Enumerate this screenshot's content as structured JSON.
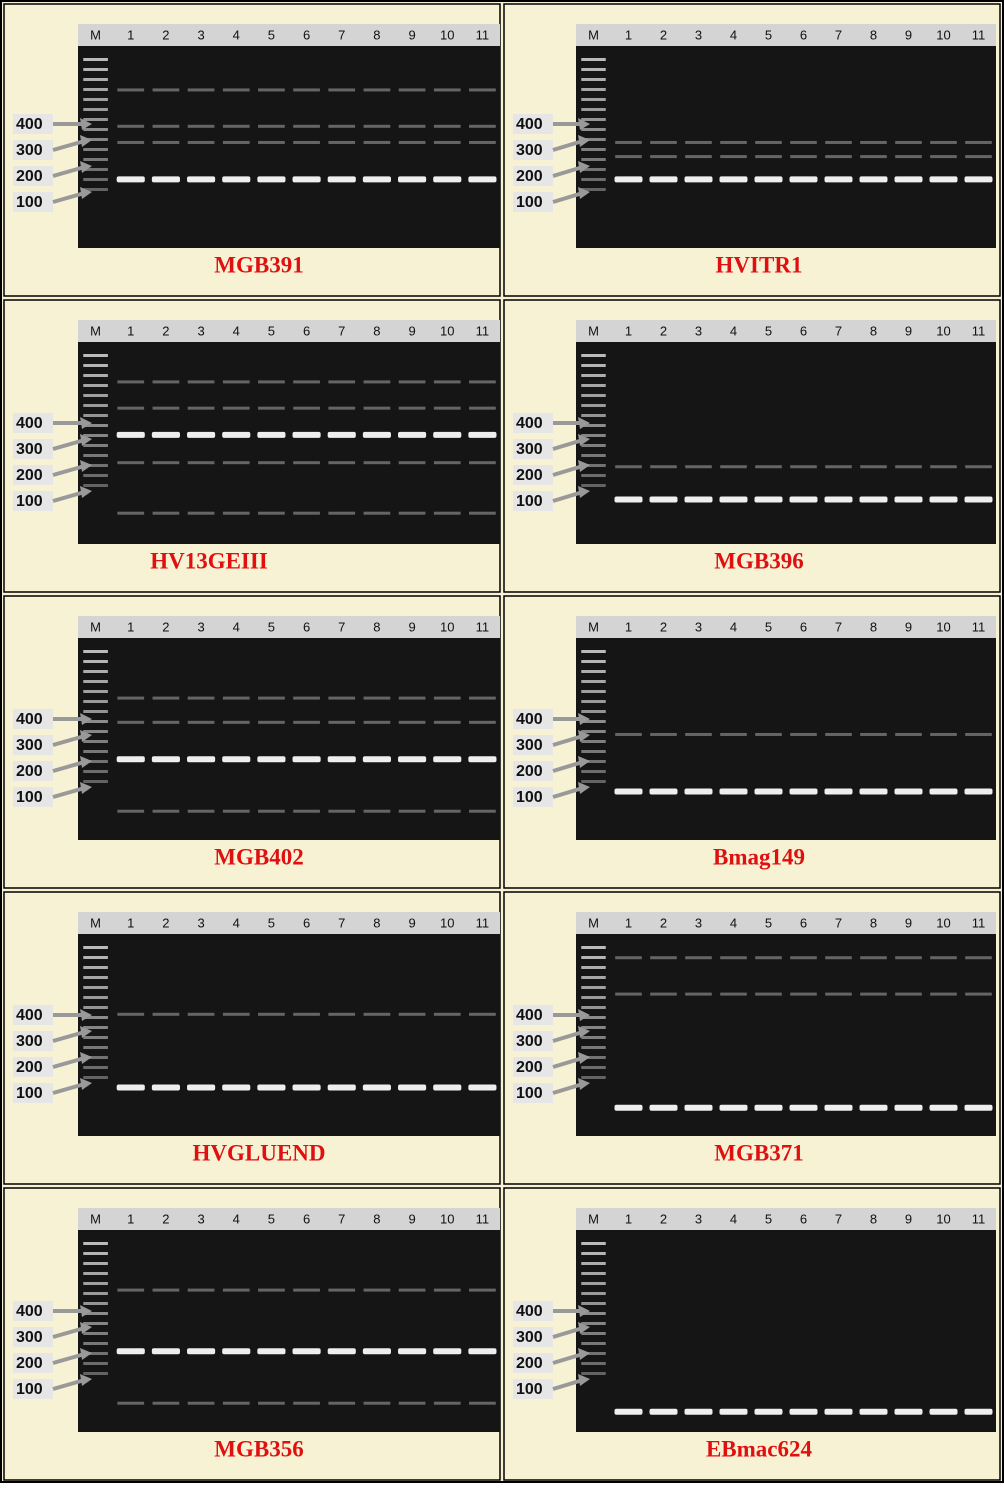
{
  "lane_labels": [
    "M",
    "1",
    "2",
    "3",
    "4",
    "5",
    "6",
    "7",
    "8",
    "9",
    "10",
    "11"
  ],
  "marker_labels": [
    "400",
    "300",
    "200",
    "100"
  ],
  "panels": [
    {
      "title": "MGB391"
    },
    {
      "title": "HVITR1"
    },
    {
      "title": "HV13GEIII"
    },
    {
      "title": "MGB396"
    },
    {
      "title": "MGB402"
    },
    {
      "title": "Bmag149"
    },
    {
      "title": "HVGLUEND"
    },
    {
      "title": "MGB371"
    },
    {
      "title": "MGB356"
    },
    {
      "title": "EBmac624"
    }
  ]
}
